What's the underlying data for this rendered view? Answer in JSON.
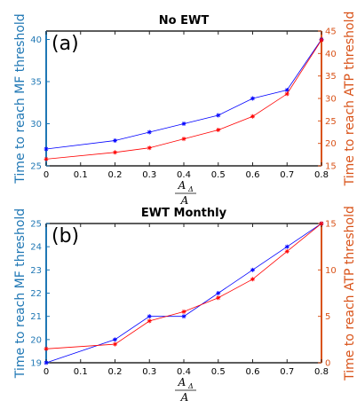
{
  "chart_data": [
    {
      "type": "line",
      "title": "No EWT",
      "panel_label": "(a)",
      "xlabel": {
        "numerator": "A",
        "subscript": "Δ",
        "denominator": "A"
      },
      "ylabel_left": "Time to reach MF threshold",
      "ylabel_right": "Time to reach ATP threshold",
      "xlim": [
        0,
        0.8
      ],
      "ylim_left": [
        25,
        41
      ],
      "ylim_right": [
        15,
        45
      ],
      "x_ticks": [
        "0",
        "0.1",
        "0.2",
        "0.3",
        "0.4",
        "0.5",
        "0.6",
        "0.7",
        "0.8"
      ],
      "y_ticks_left": [
        "25",
        "30",
        "35",
        "40"
      ],
      "y_ticks_right": [
        "15",
        "20",
        "25",
        "30",
        "35",
        "40",
        "45"
      ],
      "series": [
        {
          "axis": "left",
          "color": "#0000ff",
          "x": [
            0,
            0.2,
            0.3,
            0.4,
            0.5,
            0.6,
            0.7,
            0.8
          ],
          "y": [
            27,
            28,
            29,
            30,
            31,
            33,
            34,
            40
          ]
        },
        {
          "axis": "right",
          "color": "#ff0000",
          "x": [
            0,
            0.2,
            0.3,
            0.4,
            0.5,
            0.6,
            0.7,
            0.8
          ],
          "y": [
            16.5,
            18,
            19,
            21,
            23,
            26,
            31,
            43
          ]
        }
      ]
    },
    {
      "type": "line",
      "title": "EWT Monthly",
      "panel_label": "(b)",
      "xlabel": {
        "numerator": "A",
        "subscript": "Δ",
        "denominator": "A"
      },
      "ylabel_left": "Time to reach MF threshold",
      "ylabel_right": "Time to reach ATP threshold",
      "xlim": [
        0,
        0.8
      ],
      "ylim_left": [
        19,
        25
      ],
      "ylim_right": [
        0,
        15
      ],
      "x_ticks": [
        "0",
        "0.1",
        "0.2",
        "0.3",
        "0.4",
        "0.5",
        "0.6",
        "0.7",
        "0.8"
      ],
      "y_ticks_left": [
        "19",
        "20",
        "21",
        "22",
        "23",
        "24",
        "25"
      ],
      "y_ticks_right": [
        "0",
        "5",
        "10",
        "15"
      ],
      "series": [
        {
          "axis": "left",
          "color": "#0000ff",
          "x": [
            0,
            0.2,
            0.3,
            0.4,
            0.5,
            0.6,
            0.7,
            0.8
          ],
          "y": [
            19,
            20,
            21,
            21,
            22,
            23,
            24,
            25
          ]
        },
        {
          "axis": "right",
          "color": "#ff0000",
          "x": [
            0,
            0.2,
            0.3,
            0.4,
            0.5,
            0.6,
            0.7,
            0.8
          ],
          "y": [
            1.5,
            2,
            4.5,
            5.5,
            7,
            9,
            12,
            15
          ]
        }
      ]
    }
  ],
  "colors": {
    "left_axis": "#1f77b4",
    "right_axis": "#d95319",
    "frame": "#262626"
  }
}
